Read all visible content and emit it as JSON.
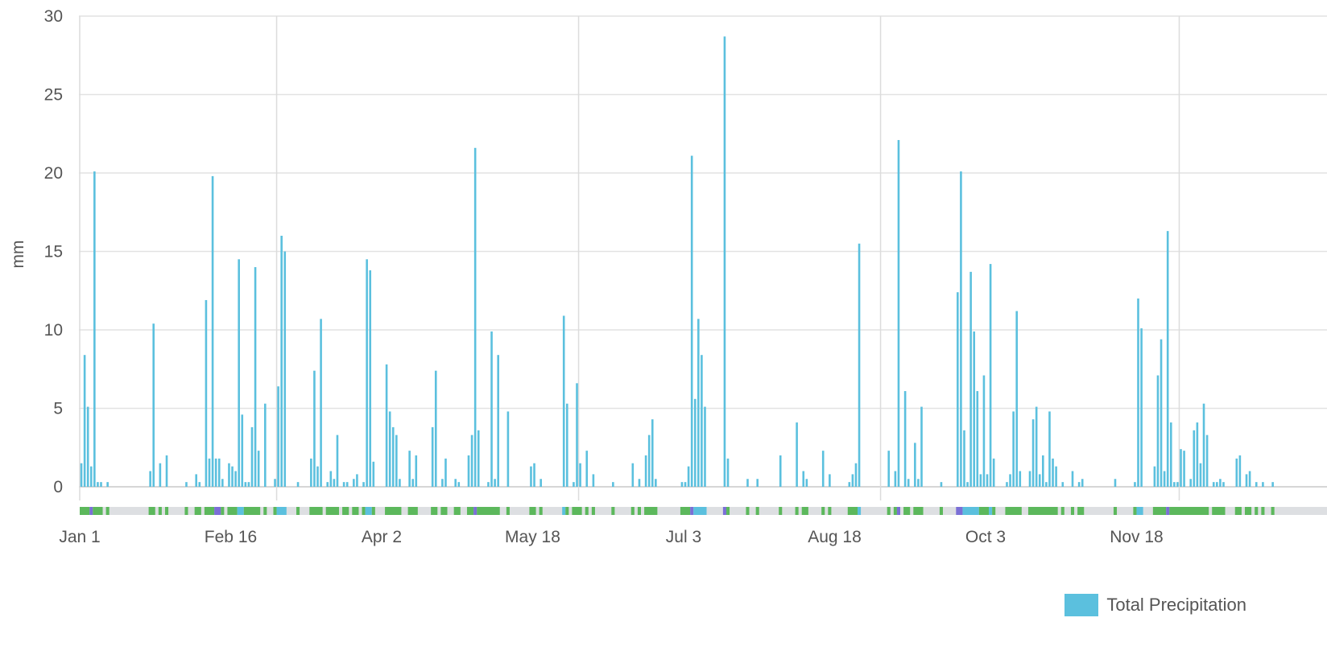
{
  "chart_data": {
    "type": "bar",
    "title": "",
    "ylabel": "mm",
    "ylim": [
      0,
      30
    ],
    "yticks": [
      0,
      5,
      10,
      15,
      20,
      25,
      30
    ],
    "x_start_label": "Jan 1",
    "x_tick_labels": [
      "Jan 1",
      "Feb 16",
      "Apr 2",
      "May 18",
      "Jul 3",
      "Aug 18",
      "Oct 3",
      "Nov 18"
    ],
    "vertical_grid_dates": [
      "Mar 1",
      "Jun 1",
      "Sep 1",
      "Dec 1"
    ],
    "grid": true,
    "legend_position": "bottom-right",
    "series": [
      {
        "name": "Total Precipitation",
        "color": "#5bc0de",
        "points": [
          [
            "Jan 1",
            1.5
          ],
          [
            "Jan 2",
            8.4
          ],
          [
            "Jan 3",
            5.1
          ],
          [
            "Jan 4",
            1.3
          ],
          [
            "Jan 5",
            20.1
          ],
          [
            "Jan 6",
            0.3
          ],
          [
            "Jan 7",
            0.3
          ],
          [
            "Jan 9",
            0.3
          ],
          [
            "Jan 22",
            1.0
          ],
          [
            "Jan 23",
            10.4
          ],
          [
            "Jan 25",
            1.5
          ],
          [
            "Jan 27",
            2.0
          ],
          [
            "Feb 2",
            0.3
          ],
          [
            "Feb 5",
            0.8
          ],
          [
            "Feb 6",
            0.3
          ],
          [
            "Feb 8",
            11.9
          ],
          [
            "Feb 9",
            1.8
          ],
          [
            "Feb 10",
            19.8
          ],
          [
            "Feb 11",
            1.8
          ],
          [
            "Feb 12",
            1.8
          ],
          [
            "Feb 13",
            0.5
          ],
          [
            "Feb 15",
            1.5
          ],
          [
            "Feb 16",
            1.3
          ],
          [
            "Feb 17",
            1.0
          ],
          [
            "Feb 18",
            14.5
          ],
          [
            "Feb 19",
            4.6
          ],
          [
            "Feb 20",
            0.3
          ],
          [
            "Feb 21",
            0.3
          ],
          [
            "Feb 22",
            3.8
          ],
          [
            "Feb 23",
            14.0
          ],
          [
            "Feb 24",
            2.3
          ],
          [
            "Feb 26",
            5.3
          ],
          [
            "Feb 29",
            0.5
          ],
          [
            "Mar 1",
            6.4
          ],
          [
            "Mar 2",
            16.0
          ],
          [
            "Mar 3",
            15.0
          ],
          [
            "Mar 7",
            0.3
          ],
          [
            "Mar 11",
            1.8
          ],
          [
            "Mar 12",
            7.4
          ],
          [
            "Mar 13",
            1.3
          ],
          [
            "Mar 14",
            10.7
          ],
          [
            "Mar 16",
            0.3
          ],
          [
            "Mar 17",
            1.0
          ],
          [
            "Mar 18",
            0.5
          ],
          [
            "Mar 19",
            3.3
          ],
          [
            "Mar 21",
            0.3
          ],
          [
            "Mar 22",
            0.3
          ],
          [
            "Mar 24",
            0.5
          ],
          [
            "Mar 25",
            0.8
          ],
          [
            "Mar 27",
            0.3
          ],
          [
            "Mar 28",
            14.5
          ],
          [
            "Mar 29",
            13.8
          ],
          [
            "Mar 30",
            1.6
          ],
          [
            "Apr 3",
            7.8
          ],
          [
            "Apr 4",
            4.8
          ],
          [
            "Apr 5",
            3.8
          ],
          [
            "Apr 6",
            3.3
          ],
          [
            "Apr 7",
            0.5
          ],
          [
            "Apr 10",
            2.3
          ],
          [
            "Apr 11",
            0.5
          ],
          [
            "Apr 12",
            2.0
          ],
          [
            "Apr 17",
            3.8
          ],
          [
            "Apr 18",
            7.4
          ],
          [
            "Apr 20",
            0.5
          ],
          [
            "Apr 21",
            1.8
          ],
          [
            "Apr 24",
            0.5
          ],
          [
            "Apr 25",
            0.3
          ],
          [
            "Apr 28",
            2.0
          ],
          [
            "Apr 29",
            3.3
          ],
          [
            "Apr 30",
            21.6
          ],
          [
            "May 1",
            3.6
          ],
          [
            "May 4",
            0.3
          ],
          [
            "May 5",
            9.9
          ],
          [
            "May 6",
            0.5
          ],
          [
            "May 7",
            8.4
          ],
          [
            "May 10",
            4.8
          ],
          [
            "May 17",
            1.3
          ],
          [
            "May 18",
            1.5
          ],
          [
            "May 20",
            0.5
          ],
          [
            "May 27",
            10.9
          ],
          [
            "May 28",
            5.3
          ],
          [
            "May 30",
            0.3
          ],
          [
            "May 31",
            6.6
          ],
          [
            "Jun 1",
            1.5
          ],
          [
            "Jun 3",
            2.3
          ],
          [
            "Jun 5",
            0.8
          ],
          [
            "Jun 11",
            0.3
          ],
          [
            "Jun 17",
            1.5
          ],
          [
            "Jun 19",
            0.5
          ],
          [
            "Jun 21",
            2.0
          ],
          [
            "Jun 22",
            3.3
          ],
          [
            "Jun 23",
            4.3
          ],
          [
            "Jun 24",
            0.5
          ],
          [
            "Jul 2",
            0.3
          ],
          [
            "Jul 3",
            0.3
          ],
          [
            "Jul 4",
            1.3
          ],
          [
            "Jul 5",
            21.1
          ],
          [
            "Jul 6",
            5.6
          ],
          [
            "Jul 7",
            10.7
          ],
          [
            "Jul 8",
            8.4
          ],
          [
            "Jul 9",
            5.1
          ],
          [
            "Jul 15",
            28.7
          ],
          [
            "Jul 16",
            1.8
          ],
          [
            "Jul 22",
            0.5
          ],
          [
            "Jul 25",
            0.5
          ],
          [
            "Aug 1",
            2.0
          ],
          [
            "Aug 6",
            4.1
          ],
          [
            "Aug 8",
            1.0
          ],
          [
            "Aug 9",
            0.5
          ],
          [
            "Aug 14",
            2.3
          ],
          [
            "Aug 16",
            0.8
          ],
          [
            "Aug 22",
            0.3
          ],
          [
            "Aug 23",
            0.8
          ],
          [
            "Aug 24",
            1.5
          ],
          [
            "Aug 25",
            15.5
          ],
          [
            "Sep 3",
            2.3
          ],
          [
            "Sep 5",
            1.0
          ],
          [
            "Sep 6",
            22.1
          ],
          [
            "Sep 8",
            6.1
          ],
          [
            "Sep 9",
            0.5
          ],
          [
            "Sep 11",
            2.8
          ],
          [
            "Sep 12",
            0.5
          ],
          [
            "Sep 13",
            5.1
          ],
          [
            "Sep 19",
            0.3
          ],
          [
            "Sep 24",
            12.4
          ],
          [
            "Sep 25",
            20.1
          ],
          [
            "Sep 26",
            3.6
          ],
          [
            "Sep 27",
            0.3
          ],
          [
            "Sep 28",
            13.7
          ],
          [
            "Sep 29",
            9.9
          ],
          [
            "Sep 30",
            6.1
          ],
          [
            "Oct 1",
            0.8
          ],
          [
            "Oct 2",
            7.1
          ],
          [
            "Oct 3",
            0.8
          ],
          [
            "Oct 4",
            14.2
          ],
          [
            "Oct 5",
            1.8
          ],
          [
            "Oct 9",
            0.3
          ],
          [
            "Oct 10",
            0.8
          ],
          [
            "Oct 11",
            4.8
          ],
          [
            "Oct 12",
            11.2
          ],
          [
            "Oct 13",
            1.0
          ],
          [
            "Oct 16",
            1.0
          ],
          [
            "Oct 17",
            4.3
          ],
          [
            "Oct 18",
            5.1
          ],
          [
            "Oct 19",
            0.8
          ],
          [
            "Oct 20",
            2.0
          ],
          [
            "Oct 21",
            0.3
          ],
          [
            "Oct 22",
            4.8
          ],
          [
            "Oct 23",
            1.8
          ],
          [
            "Oct 24",
            1.3
          ],
          [
            "Oct 26",
            0.3
          ],
          [
            "Oct 29",
            1.0
          ],
          [
            "Oct 31",
            0.3
          ],
          [
            "Nov 1",
            0.5
          ],
          [
            "Nov 11",
            0.5
          ],
          [
            "Nov 17",
            0.3
          ],
          [
            "Nov 18",
            12.0
          ],
          [
            "Nov 19",
            10.1
          ],
          [
            "Nov 23",
            1.3
          ],
          [
            "Nov 24",
            7.1
          ],
          [
            "Nov 25",
            9.4
          ],
          [
            "Nov 26",
            1.0
          ],
          [
            "Nov 27",
            16.3
          ],
          [
            "Nov 28",
            4.1
          ],
          [
            "Nov 29",
            0.3
          ],
          [
            "Nov 30",
            0.3
          ],
          [
            "Dec 1",
            2.4
          ],
          [
            "Dec 2",
            2.3
          ],
          [
            "Dec 4",
            0.5
          ],
          [
            "Dec 5",
            3.6
          ],
          [
            "Dec 6",
            4.1
          ],
          [
            "Dec 7",
            1.5
          ],
          [
            "Dec 8",
            5.3
          ],
          [
            "Dec 9",
            3.3
          ],
          [
            "Dec 11",
            0.3
          ],
          [
            "Dec 12",
            0.3
          ],
          [
            "Dec 13",
            0.5
          ],
          [
            "Dec 14",
            0.3
          ],
          [
            "Dec 18",
            1.8
          ],
          [
            "Dec 19",
            2.0
          ],
          [
            "Dec 21",
            0.8
          ],
          [
            "Dec 22",
            1.0
          ],
          [
            "Dec 24",
            0.3
          ],
          [
            "Dec 26",
            0.3
          ],
          [
            "Dec 29",
            0.3
          ]
        ]
      }
    ],
    "category_strip": {
      "colors": {
        "none": "#dddfe2",
        "rain": "#5cb85c",
        "snow": "#5bc0de",
        "mixed": "#7b6fd6"
      },
      "segments": [
        [
          "Jan 1",
          "Jan 3",
          "rain"
        ],
        [
          "Jan 4",
          "Jan 4",
          "mixed"
        ],
        [
          "Jan 5",
          "Jan 7",
          "rain"
        ],
        [
          "Jan 9",
          "Jan 9",
          "rain"
        ],
        [
          "Jan 22",
          "Jan 23",
          "rain"
        ],
        [
          "Jan 25",
          "Jan 25",
          "rain"
        ],
        [
          "Jan 27",
          "Jan 27",
          "rain"
        ],
        [
          "Feb 2",
          "Feb 2",
          "rain"
        ],
        [
          "Feb 5",
          "Feb 6",
          "rain"
        ],
        [
          "Feb 8",
          "Feb 10",
          "rain"
        ],
        [
          "Feb 11",
          "Feb 12",
          "mixed"
        ],
        [
          "Feb 13",
          "Feb 13",
          "rain"
        ],
        [
          "Feb 15",
          "Feb 17",
          "rain"
        ],
        [
          "Feb 18",
          "Feb 19",
          "snow"
        ],
        [
          "Feb 20",
          "Feb 24",
          "rain"
        ],
        [
          "Feb 26",
          "Feb 26",
          "rain"
        ],
        [
          "Feb 29",
          "Feb 29",
          "rain"
        ],
        [
          "Mar 1",
          "Mar 3",
          "snow"
        ],
        [
          "Mar 7",
          "Mar 7",
          "rain"
        ],
        [
          "Mar 11",
          "Mar 14",
          "rain"
        ],
        [
          "Mar 16",
          "Mar 19",
          "rain"
        ],
        [
          "Mar 21",
          "Mar 22",
          "rain"
        ],
        [
          "Mar 24",
          "Mar 25",
          "rain"
        ],
        [
          "Mar 27",
          "Mar 27",
          "rain"
        ],
        [
          "Mar 28",
          "Mar 29",
          "snow"
        ],
        [
          "Mar 30",
          "Mar 30",
          "rain"
        ],
        [
          "Apr 3",
          "Apr 7",
          "rain"
        ],
        [
          "Apr 10",
          "Apr 12",
          "rain"
        ],
        [
          "Apr 17",
          "Apr 18",
          "rain"
        ],
        [
          "Apr 20",
          "Apr 21",
          "rain"
        ],
        [
          "Apr 24",
          "Apr 25",
          "rain"
        ],
        [
          "Apr 28",
          "Apr 29",
          "rain"
        ],
        [
          "Apr 30",
          "Apr 30",
          "mixed"
        ],
        [
          "May 1",
          "May 7",
          "rain"
        ],
        [
          "May 10",
          "May 10",
          "rain"
        ],
        [
          "May 17",
          "May 18",
          "rain"
        ],
        [
          "May 20",
          "May 20",
          "rain"
        ],
        [
          "May 27",
          "May 27",
          "snow"
        ],
        [
          "May 28",
          "May 28",
          "rain"
        ],
        [
          "May 30",
          "Jun 1",
          "rain"
        ],
        [
          "Jun 3",
          "Jun 3",
          "rain"
        ],
        [
          "Jun 5",
          "Jun 5",
          "rain"
        ],
        [
          "Jun 11",
          "Jun 11",
          "rain"
        ],
        [
          "Jun 17",
          "Jun 17",
          "rain"
        ],
        [
          "Jun 19",
          "Jun 19",
          "rain"
        ],
        [
          "Jun 21",
          "Jun 24",
          "rain"
        ],
        [
          "Jul 2",
          "Jul 4",
          "rain"
        ],
        [
          "Jul 5",
          "Jul 5",
          "mixed"
        ],
        [
          "Jul 6",
          "Jul 9",
          "snow"
        ],
        [
          "Jul 15",
          "Jul 15",
          "mixed"
        ],
        [
          "Jul 16",
          "Jul 16",
          "rain"
        ],
        [
          "Jul 22",
          "Jul 22",
          "rain"
        ],
        [
          "Jul 25",
          "Jul 25",
          "rain"
        ],
        [
          "Aug 1",
          "Aug 1",
          "rain"
        ],
        [
          "Aug 6",
          "Aug 6",
          "rain"
        ],
        [
          "Aug 8",
          "Aug 9",
          "rain"
        ],
        [
          "Aug 14",
          "Aug 14",
          "rain"
        ],
        [
          "Aug 16",
          "Aug 16",
          "rain"
        ],
        [
          "Aug 22",
          "Aug 24",
          "rain"
        ],
        [
          "Aug 25",
          "Aug 25",
          "snow"
        ],
        [
          "Sep 3",
          "Sep 3",
          "rain"
        ],
        [
          "Sep 5",
          "Sep 5",
          "rain"
        ],
        [
          "Sep 6",
          "Sep 6",
          "mixed"
        ],
        [
          "Sep 8",
          "Sep 9",
          "rain"
        ],
        [
          "Sep 11",
          "Sep 13",
          "rain"
        ],
        [
          "Sep 19",
          "Sep 19",
          "rain"
        ],
        [
          "Sep 24",
          "Sep 25",
          "mixed"
        ],
        [
          "Sep 26",
          "Sep 30",
          "snow"
        ],
        [
          "Oct 1",
          "Oct 3",
          "rain"
        ],
        [
          "Oct 4",
          "Oct 4",
          "snow"
        ],
        [
          "Oct 5",
          "Oct 5",
          "rain"
        ],
        [
          "Oct 9",
          "Oct 13",
          "rain"
        ],
        [
          "Oct 16",
          "Oct 24",
          "rain"
        ],
        [
          "Oct 26",
          "Oct 26",
          "rain"
        ],
        [
          "Oct 29",
          "Oct 29",
          "rain"
        ],
        [
          "Oct 31",
          "Nov 1",
          "rain"
        ],
        [
          "Nov 11",
          "Nov 11",
          "rain"
        ],
        [
          "Nov 17",
          "Nov 17",
          "rain"
        ],
        [
          "Nov 18",
          "Nov 19",
          "snow"
        ],
        [
          "Nov 23",
          "Nov 26",
          "rain"
        ],
        [
          "Nov 27",
          "Nov 27",
          "mixed"
        ],
        [
          "Nov 28",
          "Dec 9",
          "rain"
        ],
        [
          "Dec 11",
          "Dec 14",
          "rain"
        ],
        [
          "Dec 18",
          "Dec 19",
          "rain"
        ],
        [
          "Dec 21",
          "Dec 22",
          "rain"
        ],
        [
          "Dec 24",
          "Dec 24",
          "rain"
        ],
        [
          "Dec 26",
          "Dec 26",
          "rain"
        ],
        [
          "Dec 29",
          "Dec 29",
          "rain"
        ]
      ]
    }
  }
}
